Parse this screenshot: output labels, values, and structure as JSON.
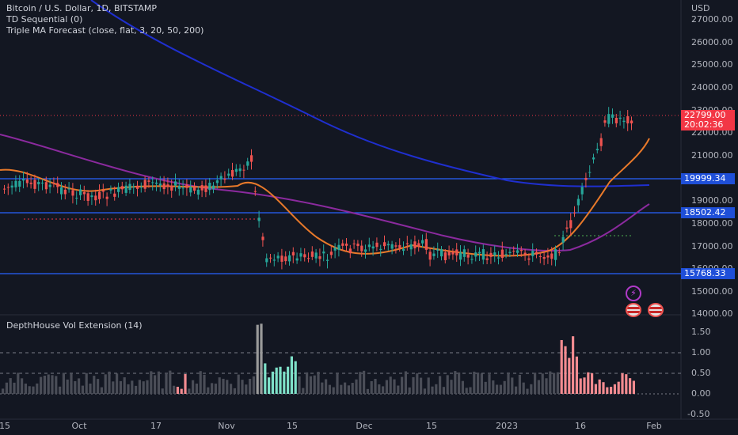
{
  "legend": {
    "line1": "Bitcoin / U.S. Dollar, 1D, BITSTAMP",
    "line2": "TD Sequential (0)",
    "line3": "Triple MA Forecast (close, flat, 3, 20, 50, 200)"
  },
  "pane2_title": "DepthHouse Vol Extension (14)",
  "price_axis": {
    "currency": "USD",
    "ticks": [
      "27000.00",
      "26000.00",
      "25000.00",
      "24000.00",
      "23000.00",
      "22000.00",
      "21000.00",
      "20000.00",
      "19000.00",
      "18000.00",
      "17000.00",
      "16000.00",
      "15000.00",
      "14000.00"
    ]
  },
  "vol_axis": {
    "ticks": [
      "1.50",
      "1.00",
      "0.50",
      "0.00",
      "-0.50"
    ]
  },
  "time_axis": {
    "ticks": [
      "15",
      "Oct",
      "17",
      "Nov",
      "15",
      "Dec",
      "15",
      "2023",
      "16",
      "Feb"
    ]
  },
  "price_tags": {
    "last_price": "22799.00",
    "countdown": "20:02:36",
    "level1": "19999.34",
    "level2": "18502.42",
    "level3": "15768.33"
  },
  "colors": {
    "background": "#131722",
    "up": "#26a69a",
    "down": "#ef5350",
    "ma_fast": "#e8792a",
    "ma_mid": "#8b2a9e",
    "ma_slow": "#1f2fcf",
    "level_line": "#2962ff"
  },
  "icons": [
    "lightning-icon",
    "us-flag-icon",
    "us-flag-icon"
  ]
}
